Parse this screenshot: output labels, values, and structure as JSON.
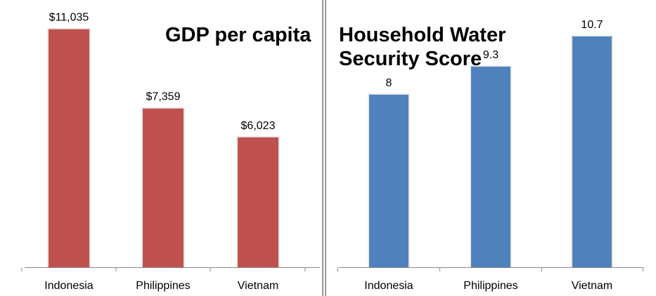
{
  "chart_data": [
    {
      "type": "bar",
      "title": "GDP per capita",
      "categories": [
        "Indonesia",
        "Philippines",
        "Vietnam"
      ],
      "values": [
        11035,
        7359,
        6023
      ],
      "data_labels": [
        "$11,035",
        "$7,359",
        "$6,023"
      ],
      "ylim": [
        0,
        12000
      ],
      "color": "#c0504d",
      "grid": false,
      "legend": false
    },
    {
      "type": "bar",
      "title": "Household Water\nSecurity Score",
      "categories": [
        "Indonesia",
        "Philippines",
        "Vietnam"
      ],
      "values": [
        8,
        9.3,
        10.7
      ],
      "data_labels": [
        "8",
        "9.3",
        "10.7"
      ],
      "ylim": [
        0,
        12
      ],
      "color": "#4f81bd",
      "grid": false,
      "legend": false
    }
  ]
}
